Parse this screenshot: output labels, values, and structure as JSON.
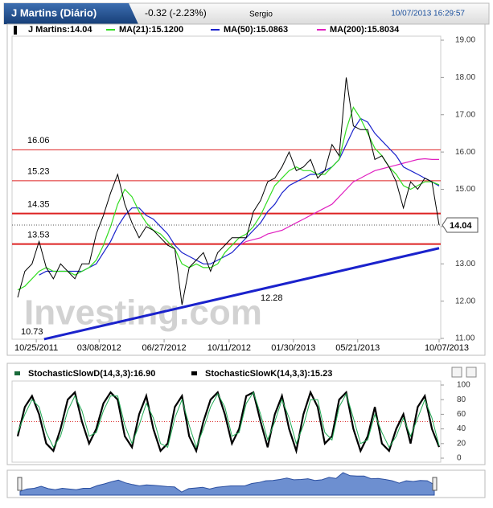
{
  "header": {
    "title": "J Martins (Diário)",
    "change": "-0.32 (-2.23%)",
    "user": "Sergio",
    "timestamp": "10/07/2013 16:29:57"
  },
  "chart_data": [
    {
      "type": "line",
      "series": [
        {
          "name": "J Martins:14.04",
          "color": "#000000",
          "values": [
            12.1,
            12.8,
            13.0,
            13.6,
            12.9,
            12.6,
            13.0,
            12.8,
            12.6,
            13.0,
            13.0,
            13.8,
            14.3,
            14.9,
            15.4,
            14.6,
            14.1,
            13.7,
            14.0,
            13.9,
            13.7,
            13.5,
            13.4,
            11.9,
            12.9,
            13.1,
            13.3,
            12.8,
            13.3,
            13.5,
            13.7,
            13.7,
            13.7,
            14.4,
            14.7,
            15.2,
            15.3,
            15.6,
            16.0,
            15.5,
            15.6,
            15.8,
            15.3,
            15.5,
            16.2,
            15.9,
            18.0,
            16.7,
            16.6,
            16.6,
            15.8,
            15.9,
            15.6,
            15.2,
            14.5,
            15.2,
            15.0,
            15.3,
            15.2,
            14.04
          ]
        },
        {
          "name": "MA(21):15.1200",
          "color": "#33dd22",
          "values": [
            12.3,
            12.4,
            12.6,
            12.8,
            12.9,
            12.8,
            12.8,
            12.8,
            12.7,
            12.8,
            12.9,
            13.1,
            13.5,
            14.0,
            14.6,
            15.0,
            14.8,
            14.4,
            14.1,
            13.9,
            13.8,
            13.6,
            13.4,
            13.0,
            12.9,
            13.0,
            12.9,
            12.9,
            13.0,
            13.3,
            13.5,
            13.7,
            13.8,
            14.0,
            14.3,
            14.7,
            15.1,
            15.3,
            15.5,
            15.6,
            15.5,
            15.5,
            15.4,
            15.4,
            15.6,
            15.8,
            16.6,
            17.2,
            16.9,
            16.5,
            16.1,
            15.9,
            15.6,
            15.4,
            15.1,
            15.0,
            15.1,
            15.2,
            15.2,
            15.12
          ]
        },
        {
          "name": "MA(50):15.0863",
          "color": "#1a22cc",
          "values": [
            null,
            null,
            null,
            12.7,
            12.8,
            12.8,
            12.8,
            12.8,
            12.8,
            12.8,
            12.9,
            13.0,
            13.3,
            13.6,
            14.0,
            14.3,
            14.5,
            14.5,
            14.3,
            14.2,
            14.0,
            13.8,
            13.5,
            13.3,
            13.2,
            13.1,
            13.0,
            13.0,
            13.1,
            13.2,
            13.3,
            13.5,
            13.7,
            13.9,
            14.1,
            14.4,
            14.6,
            14.9,
            15.1,
            15.2,
            15.3,
            15.4,
            15.4,
            15.5,
            15.6,
            15.8,
            16.2,
            16.6,
            16.9,
            16.8,
            16.5,
            16.3,
            16.1,
            15.9,
            15.6,
            15.5,
            15.4,
            15.3,
            15.2,
            15.09
          ]
        },
        {
          "name": "MA(200):15.8034",
          "color": "#e020c0",
          "values": [
            null,
            null,
            null,
            null,
            null,
            null,
            null,
            null,
            null,
            null,
            null,
            null,
            null,
            null,
            null,
            null,
            null,
            null,
            null,
            null,
            null,
            null,
            null,
            null,
            null,
            null,
            null,
            null,
            null,
            null,
            null,
            13.5,
            13.6,
            13.65,
            13.7,
            13.8,
            13.85,
            13.9,
            14.0,
            14.1,
            14.2,
            14.3,
            14.4,
            14.5,
            14.6,
            14.8,
            15.0,
            15.2,
            15.3,
            15.4,
            15.5,
            15.55,
            15.6,
            15.65,
            15.7,
            15.75,
            15.8,
            15.82,
            15.8,
            15.8
          ]
        }
      ],
      "xlim": [
        0,
        59
      ],
      "xticks": [
        {
          "value": 2.6,
          "label": "10/25/2011"
        },
        {
          "value": 11.4,
          "label": "03/08/2012"
        },
        {
          "value": 20.5,
          "label": "06/27/2012"
        },
        {
          "value": 29.6,
          "label": "10/11/2012"
        },
        {
          "value": 38.6,
          "label": "01/30/2013"
        },
        {
          "value": 47.6,
          "label": "05/21/2013"
        },
        {
          "value": 59,
          "label": "10/07/2013"
        }
      ],
      "ylim": [
        11,
        19
      ],
      "yticks": [
        {
          "value": 11,
          "label": "11.00"
        },
        {
          "value": 12,
          "label": "12.00"
        },
        {
          "value": 13,
          "label": "13.00"
        },
        {
          "value": 14,
          "label": "14.00"
        },
        {
          "value": 15,
          "label": "15.00"
        },
        {
          "value": 16,
          "label": "16.00"
        },
        {
          "value": 17,
          "label": "17.00"
        },
        {
          "value": 18,
          "label": "18.00"
        },
        {
          "value": 19,
          "label": "19.00"
        }
      ],
      "levels": [
        16.06,
        15.23,
        14.35,
        13.53
      ],
      "level_color": "#dd2222",
      "trend_line": {
        "x": [
          3.7,
          59
        ],
        "values": [
          10.98,
          13.42
        ],
        "color": "#1a22cc"
      },
      "last_price": 14.04,
      "annotations": [
        "12.28",
        "10.73"
      ],
      "watermark": "Investing.com"
    },
    {
      "type": "line",
      "series": [
        {
          "name": "StochasticSlowD(14,3,3):16.90",
          "color": "#22aa55",
          "values": [
            35,
            60,
            80,
            70,
            35,
            15,
            30,
            65,
            85,
            65,
            30,
            35,
            65,
            85,
            85,
            45,
            20,
            45,
            75,
            55,
            20,
            15,
            55,
            80,
            45,
            15,
            40,
            70,
            88,
            70,
            30,
            35,
            75,
            90,
            60,
            25,
            50,
            80,
            55,
            20,
            45,
            80,
            80,
            35,
            25,
            70,
            88,
            55,
            20,
            25,
            60,
            35,
            15,
            30,
            55,
            30,
            55,
            80,
            55,
            16.9
          ]
        },
        {
          "name": "StochasticSlowK(14,3,3):15.23",
          "color": "#000000",
          "values": [
            30,
            70,
            85,
            60,
            20,
            10,
            40,
            80,
            90,
            50,
            20,
            40,
            75,
            90,
            80,
            30,
            15,
            60,
            85,
            40,
            10,
            20,
            70,
            85,
            30,
            10,
            50,
            80,
            90,
            60,
            20,
            40,
            85,
            90,
            50,
            15,
            60,
            85,
            40,
            10,
            60,
            90,
            70,
            20,
            30,
            80,
            90,
            40,
            10,
            30,
            70,
            20,
            10,
            40,
            60,
            20,
            70,
            85,
            40,
            15.23
          ]
        }
      ],
      "xlim": [
        0,
        59
      ],
      "ylim": [
        0,
        100
      ],
      "yticks": [
        0,
        20,
        40,
        60,
        80,
        100
      ],
      "reference_line": 50
    }
  ]
}
